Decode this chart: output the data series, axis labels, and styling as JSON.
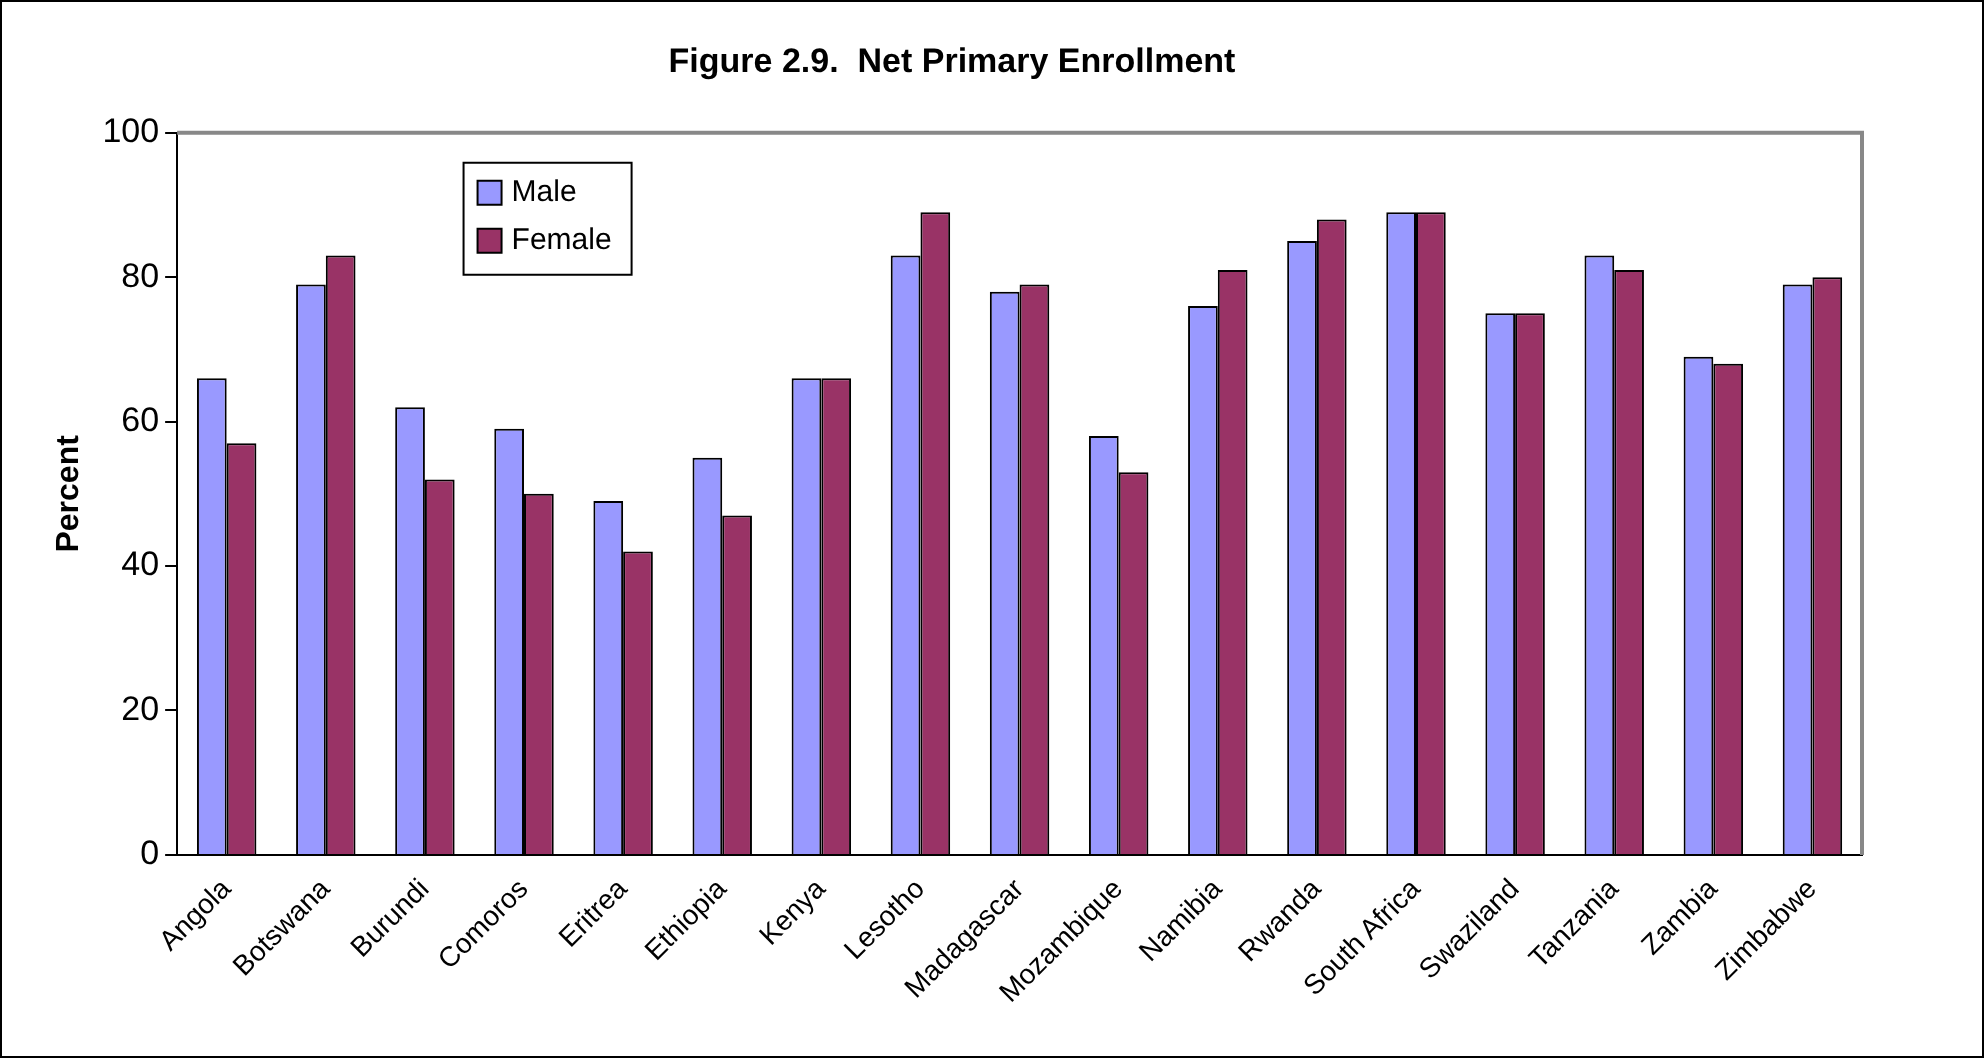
{
  "chart_data": {
    "type": "bar",
    "title": "Figure 2.9.  Net Primary Enrollment",
    "ylabel": "Percent",
    "categories": [
      "Angola",
      "Botswana",
      "Burundi",
      "Comoros",
      "Eritrea",
      "Ethiopia",
      "Kenya",
      "Lesotho",
      "Madagascar",
      "Mozambique",
      "Namibia",
      "Rwanda",
      "South Africa",
      "Swaziland",
      "Tanzania",
      "Zambia",
      "Zimbabwe"
    ],
    "series": [
      {
        "name": "Male",
        "color": "#9999ff",
        "values": [
          66,
          79,
          62,
          59,
          49,
          55,
          66,
          83,
          78,
          58,
          76,
          85,
          89,
          75,
          83,
          69,
          79
        ]
      },
      {
        "name": "Female",
        "color": "#993366",
        "values": [
          57,
          83,
          52,
          50,
          42,
          47,
          66,
          89,
          79,
          53,
          81,
          88,
          89,
          75,
          81,
          68,
          80
        ]
      }
    ],
    "ylim": [
      0,
      100
    ],
    "yticks": [
      0,
      20,
      40,
      60,
      80,
      100
    ],
    "grid": false,
    "legend": "top left"
  }
}
